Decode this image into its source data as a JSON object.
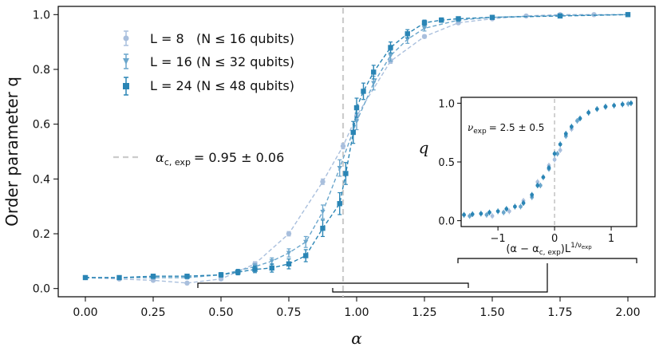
{
  "chart_data": [
    {
      "type": "line",
      "title": "",
      "xlabel": "α",
      "ylabel": "Order parameter q",
      "xlim": [
        -0.1,
        2.1
      ],
      "ylim": [
        -0.03,
        1.03
      ],
      "x_ticks": [
        "0.00",
        "0.25",
        "0.50",
        "0.75",
        "1.00",
        "1.25",
        "1.50",
        "1.75",
        "2.00"
      ],
      "y_ticks": [
        "0.0",
        "0.2",
        "0.4",
        "0.6",
        "0.8",
        "1.0"
      ],
      "legend": [
        {
          "label_l": "L = 8",
          "label_n": "(N ≤ 16 qubits)",
          "color": "#a9bfdd",
          "marker": "circle"
        },
        {
          "label_l": "L = 16",
          "label_n": "(N ≤ 32 qubits)",
          "color": "#6aa6cc",
          "marker": "triangle"
        },
        {
          "label_l": "L = 24",
          "label_n": "(N ≤ 48 qubits)",
          "color": "#2a85b5",
          "marker": "square"
        }
      ],
      "critical_line": {
        "x": 0.95,
        "label_prefix": "α",
        "label_sub": "c, exp",
        "label_value": "= 0.95 ± 0.06",
        "color": "#cccccc"
      },
      "series": [
        {
          "name": "L = 8",
          "color": "#a9bfdd",
          "marker": "circle",
          "points": [
            [
              0.0,
              0.04
            ],
            [
              0.125,
              0.035
            ],
            [
              0.25,
              0.03
            ],
            [
              0.375,
              0.02
            ],
            [
              0.5,
              0.035
            ],
            [
              0.625,
              0.09
            ],
            [
              0.75,
              0.2
            ],
            [
              0.875,
              0.39
            ],
            [
              0.95,
              0.52
            ],
            [
              1.0,
              0.63
            ],
            [
              1.125,
              0.83
            ],
            [
              1.25,
              0.92
            ],
            [
              1.375,
              0.97
            ],
            [
              1.5,
              0.985
            ],
            [
              1.625,
              0.995
            ],
            [
              1.75,
              1.0
            ],
            [
              1.875,
              1.0
            ],
            [
              2.0,
              1.0
            ]
          ],
          "errors": [
            0.005,
            0.005,
            0.005,
            0.005,
            0.005,
            0.008,
            0.008,
            0.01,
            0.01,
            0.01,
            0.008,
            0.006,
            0.005,
            0.004,
            0.003,
            0.002,
            0.002,
            0.002
          ]
        },
        {
          "name": "L = 16",
          "color": "#6aa6cc",
          "marker": "triangle",
          "points": [
            [
              0.0,
              0.04
            ],
            [
              0.125,
              0.04
            ],
            [
              0.25,
              0.04
            ],
            [
              0.375,
              0.04
            ],
            [
              0.5,
              0.05
            ],
            [
              0.625,
              0.08
            ],
            [
              0.6875,
              0.1
            ],
            [
              0.75,
              0.13
            ],
            [
              0.8125,
              0.17
            ],
            [
              0.875,
              0.28
            ],
            [
              0.9375,
              0.44
            ],
            [
              1.0,
              0.61
            ],
            [
              1.0625,
              0.75
            ],
            [
              1.125,
              0.85
            ],
            [
              1.1875,
              0.91
            ],
            [
              1.25,
              0.95
            ],
            [
              1.375,
              0.98
            ],
            [
              1.5,
              0.99
            ],
            [
              1.75,
              0.997
            ],
            [
              2.0,
              1.0
            ]
          ],
          "errors": [
            0.005,
            0.005,
            0.005,
            0.005,
            0.008,
            0.01,
            0.012,
            0.015,
            0.02,
            0.025,
            0.03,
            0.03,
            0.025,
            0.02,
            0.015,
            0.01,
            0.006,
            0.004,
            0.003,
            0.002
          ]
        },
        {
          "name": "L = 24",
          "color": "#2a85b5",
          "marker": "square",
          "points": [
            [
              0.0,
              0.04
            ],
            [
              0.125,
              0.04
            ],
            [
              0.25,
              0.045
            ],
            [
              0.375,
              0.045
            ],
            [
              0.5,
              0.05
            ],
            [
              0.5625,
              0.06
            ],
            [
              0.625,
              0.07
            ],
            [
              0.6875,
              0.075
            ],
            [
              0.75,
              0.09
            ],
            [
              0.8125,
              0.12
            ],
            [
              0.875,
              0.22
            ],
            [
              0.9375,
              0.31
            ],
            [
              0.96,
              0.42
            ],
            [
              0.9875,
              0.57
            ],
            [
              1.0,
              0.66
            ],
            [
              1.025,
              0.72
            ],
            [
              1.0625,
              0.79
            ],
            [
              1.125,
              0.88
            ],
            [
              1.1875,
              0.93
            ],
            [
              1.25,
              0.97
            ],
            [
              1.3125,
              0.98
            ],
            [
              1.375,
              0.985
            ],
            [
              1.5,
              0.99
            ],
            [
              1.75,
              0.995
            ],
            [
              2.0,
              1.0
            ]
          ],
          "errors": [
            0.005,
            0.005,
            0.006,
            0.006,
            0.008,
            0.01,
            0.012,
            0.015,
            0.018,
            0.022,
            0.03,
            0.04,
            0.04,
            0.04,
            0.035,
            0.03,
            0.025,
            0.02,
            0.015,
            0.01,
            0.008,
            0.006,
            0.004,
            0.003,
            0.002
          ]
        }
      ],
      "bracket_annotations": [
        "scaling-collapse bracket linking main axis to inset"
      ]
    },
    {
      "type": "scatter",
      "title": "",
      "xlabel_parts": {
        "lhs": "(α − α",
        "sub": "c, exp",
        "rhs": ")L",
        "sup": "1/ν",
        "sup_sub": "exp"
      },
      "ylabel": "q",
      "xlim": [
        -1.65,
        1.45
      ],
      "ylim": [
        -0.05,
        1.05
      ],
      "x_ticks": [
        "−1",
        "0",
        "1"
      ],
      "y_ticks": [
        "0.0",
        "0.5",
        "1.0"
      ],
      "annotation": {
        "prefix": "ν",
        "sub": "exp",
        "value": "= 2.5 ± 0.5"
      },
      "critical_x": 0.0,
      "series": [
        {
          "name": "L = 8",
          "color": "#a9bfdd",
          "points": [
            [
              -1.1,
              0.04
            ],
            [
              -0.8,
              0.08
            ],
            [
              -0.55,
              0.17
            ],
            [
              -0.3,
              0.33
            ],
            [
              -0.1,
              0.47
            ],
            [
              0.0,
              0.52
            ],
            [
              0.1,
              0.6
            ],
            [
              0.3,
              0.78
            ],
            [
              0.6,
              0.92
            ],
            [
              0.9,
              0.97
            ],
            [
              1.2,
              0.99
            ]
          ]
        },
        {
          "name": "L = 16",
          "color": "#6aa6cc",
          "points": [
            [
              -1.5,
              0.04
            ],
            [
              -1.2,
              0.05
            ],
            [
              -0.9,
              0.07
            ],
            [
              -0.6,
              0.12
            ],
            [
              -0.4,
              0.2
            ],
            [
              -0.25,
              0.3
            ],
            [
              -0.1,
              0.44
            ],
            [
              0.05,
              0.57
            ],
            [
              0.2,
              0.72
            ],
            [
              0.4,
              0.85
            ],
            [
              0.6,
              0.92
            ],
            [
              0.9,
              0.97
            ],
            [
              1.3,
              0.995
            ]
          ]
        },
        {
          "name": "L = 24",
          "color": "#2a85b5",
          "points": [
            [
              -1.6,
              0.05
            ],
            [
              -1.45,
              0.055
            ],
            [
              -1.3,
              0.06
            ],
            [
              -1.15,
              0.07
            ],
            [
              -1.0,
              0.08
            ],
            [
              -0.85,
              0.1
            ],
            [
              -0.7,
              0.12
            ],
            [
              -0.55,
              0.15
            ],
            [
              -0.4,
              0.22
            ],
            [
              -0.3,
              0.3
            ],
            [
              -0.2,
              0.37
            ],
            [
              -0.1,
              0.45
            ],
            [
              0.0,
              0.57
            ],
            [
              0.1,
              0.65
            ],
            [
              0.2,
              0.74
            ],
            [
              0.3,
              0.8
            ],
            [
              0.45,
              0.87
            ],
            [
              0.6,
              0.92
            ],
            [
              0.75,
              0.95
            ],
            [
              0.9,
              0.97
            ],
            [
              1.05,
              0.98
            ],
            [
              1.2,
              0.99
            ],
            [
              1.35,
              1.0
            ]
          ]
        }
      ]
    }
  ]
}
